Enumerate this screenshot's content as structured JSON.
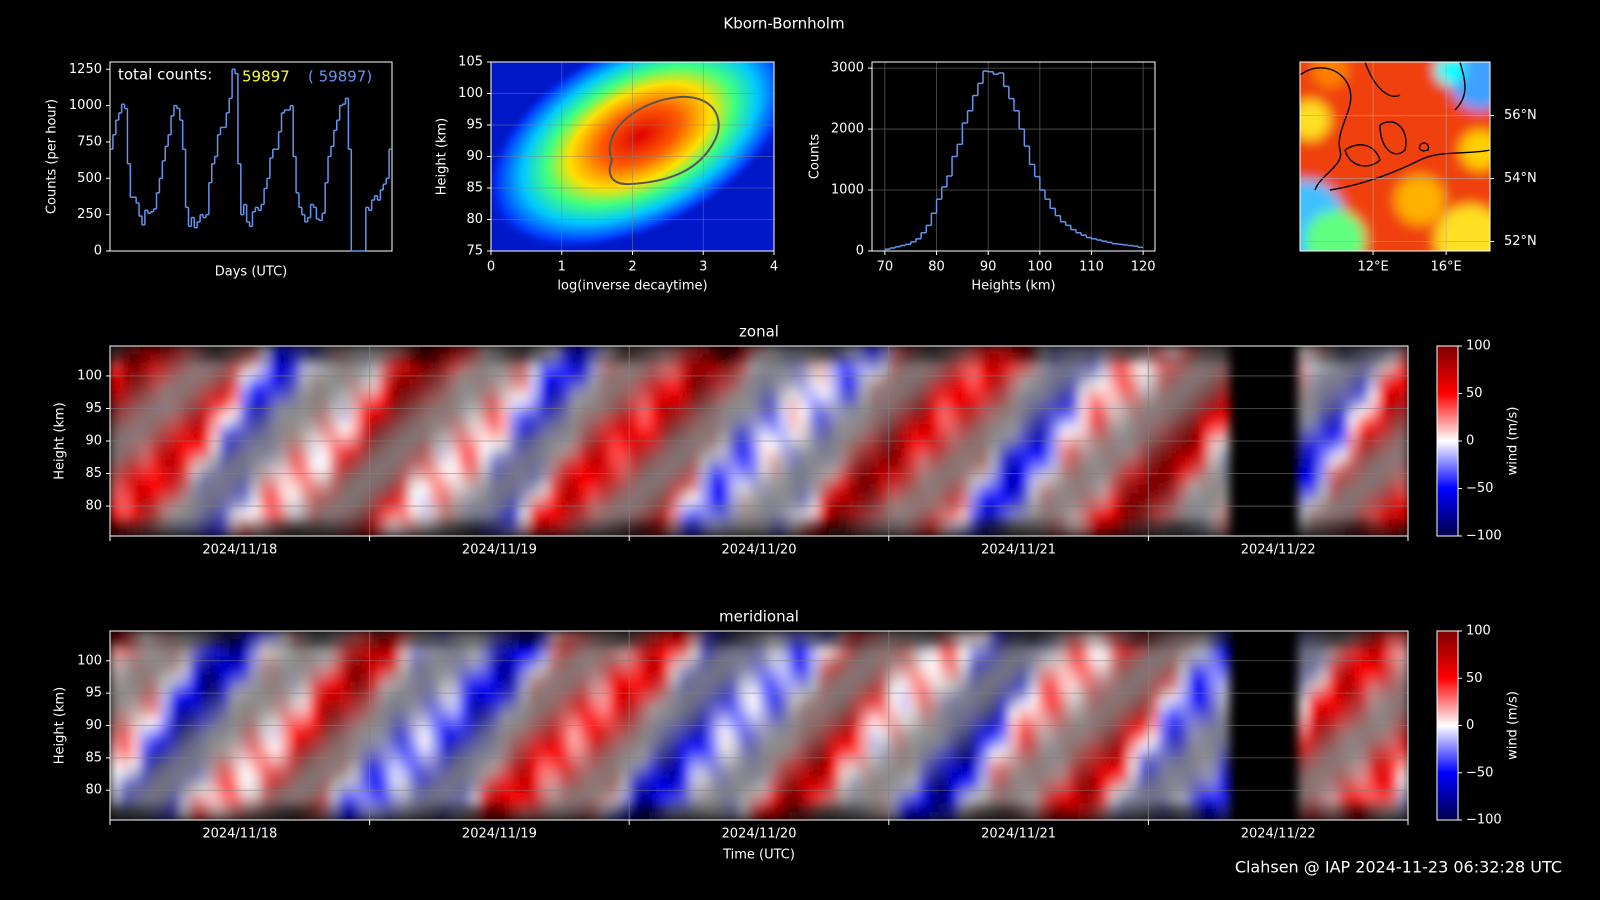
{
  "title": "Kborn-Bornholm",
  "footer": "Clahsen @ IAP 2024-11-23 06:32:28 UTC",
  "chart_data": [
    {
      "type": "step",
      "ylabel": "Counts (per hour)",
      "xlabel": "Days (UTC)",
      "ylim": [
        0,
        1300
      ],
      "yticks": [
        0,
        250,
        500,
        750,
        1000,
        1250
      ],
      "color": "#6495ed",
      "annotation": "total counts:",
      "total": "59897",
      "total_all": "( 59897)",
      "values": [
        700,
        800,
        900,
        950,
        1010,
        980,
        600,
        370,
        370,
        330,
        240,
        180,
        280,
        260,
        270,
        290,
        400,
        500,
        620,
        720,
        800,
        930,
        1000,
        980,
        900,
        700,
        300,
        170,
        230,
        160,
        200,
        250,
        230,
        250,
        470,
        600,
        650,
        800,
        850,
        850,
        950,
        1050,
        1250,
        1220,
        600,
        250,
        320,
        200,
        170,
        270,
        300,
        280,
        320,
        430,
        500,
        640,
        700,
        700,
        820,
        950,
        970,
        970,
        1000,
        650,
        400,
        300,
        250,
        200,
        230,
        320,
        300,
        220,
        210,
        260,
        470,
        650,
        720,
        830,
        900,
        1000,
        1010,
        1050,
        700,
        0,
        0,
        0,
        0,
        0,
        300,
        280,
        350,
        380,
        350,
        420,
        460,
        500,
        700
      ]
    },
    {
      "type": "density",
      "xlabel": "log(inverse decaytime)",
      "ylabel": "Height (km)",
      "xlim": [
        0,
        4
      ],
      "xticks": [
        0,
        1,
        2,
        3,
        4
      ],
      "ylim": [
        75,
        105
      ],
      "yticks": [
        75,
        80,
        85,
        90,
        95,
        100,
        105
      ],
      "grid": true
    },
    {
      "type": "histogram",
      "xlabel": "Heights (km)",
      "ylabel": "Counts",
      "color": "#6495ed",
      "grid": true,
      "xlim": [
        67.5,
        122.3
      ],
      "xticks": [
        70,
        80,
        90,
        100,
        110,
        120
      ],
      "ylim": [
        0,
        3100
      ],
      "yticks": [
        0,
        1000,
        2000,
        3000
      ],
      "bins": [
        70,
        71,
        72,
        73,
        74,
        75,
        76,
        77,
        78,
        79,
        80,
        81,
        82,
        83,
        84,
        85,
        86,
        87,
        88,
        89,
        90,
        91,
        92,
        93,
        94,
        95,
        96,
        97,
        98,
        99,
        100,
        101,
        102,
        103,
        104,
        105,
        106,
        107,
        108,
        109,
        110,
        111,
        112,
        113,
        114,
        115,
        116,
        117,
        118,
        119,
        120
      ],
      "values": [
        30,
        50,
        70,
        90,
        110,
        150,
        200,
        300,
        420,
        620,
        850,
        1050,
        1230,
        1550,
        1750,
        2100,
        2300,
        2550,
        2750,
        2950,
        2940,
        2900,
        2920,
        2700,
        2500,
        2300,
        2000,
        1720,
        1420,
        1220,
        1000,
        850,
        700,
        580,
        480,
        420,
        350,
        300,
        260,
        220,
        200,
        180,
        160,
        140,
        120,
        110,
        100,
        90,
        80,
        60
      ]
    },
    {
      "type": "map",
      "grid": true,
      "xlim": [
        8,
        18.4
      ],
      "xticks": [
        {
          "value": 12,
          "label": "12°E"
        },
        {
          "value": 16,
          "label": "16°E"
        }
      ],
      "ylim": [
        51.7,
        57.7
      ],
      "yticks": [
        {
          "value": 52,
          "label": "52°N"
        },
        {
          "value": 54,
          "label": "54°N"
        },
        {
          "value": 56,
          "label": "56°N"
        }
      ]
    },
    {
      "type": "wind",
      "title": "zonal",
      "ylabel": "Height (km)",
      "categories": [
        "2024/11/18",
        "2024/11/19",
        "2024/11/20",
        "2024/11/21",
        "2024/11/22"
      ],
      "ylim": [
        75.4,
        104.6
      ],
      "yticks": [
        80,
        85,
        90,
        95,
        100
      ],
      "grid": true,
      "clim": [
        -100,
        100
      ],
      "cticks": [
        {
          "value": -100,
          "label": "−100"
        },
        {
          "value": -50,
          "label": "−50"
        },
        0,
        50,
        100
      ],
      "colorbar_label": "wind (m/s)"
    },
    {
      "type": "wind",
      "title": "meridional",
      "ylabel": "Height (km)",
      "xlabel": "Time (UTC)",
      "categories": [
        "2024/11/18",
        "2024/11/19",
        "2024/11/20",
        "2024/11/21",
        "2024/11/22"
      ],
      "ylim": [
        75.4,
        104.6
      ],
      "yticks": [
        80,
        85,
        90,
        95,
        100
      ],
      "grid": true,
      "clim": [
        -100,
        100
      ],
      "cticks": [
        {
          "value": -100,
          "label": "−100"
        },
        {
          "value": -50,
          "label": "−50"
        },
        0,
        50,
        100
      ],
      "colorbar_label": "wind (m/s)"
    }
  ]
}
